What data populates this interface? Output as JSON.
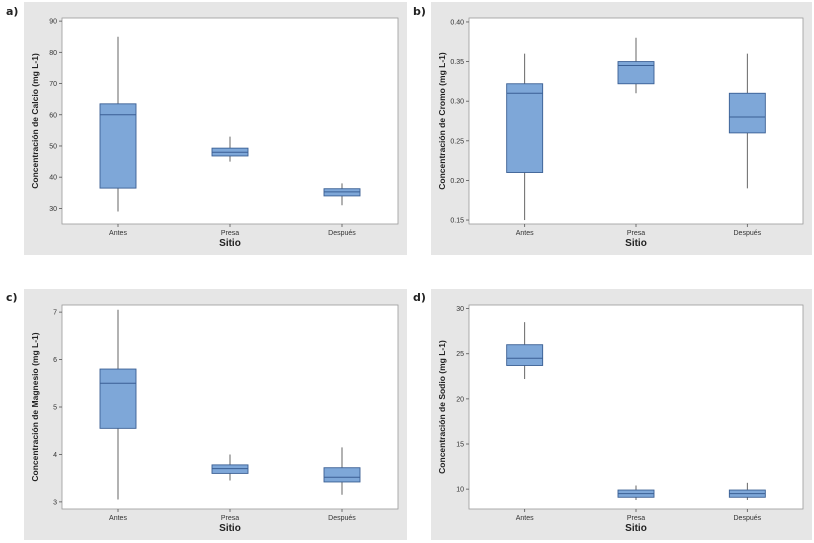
{
  "panels": [
    "a)",
    "b)",
    "c)",
    "d)"
  ],
  "chart_data": [
    {
      "type": "box",
      "title": "",
      "xlabel": "Sitio",
      "ylabel": "Concentración de Calcio (mg L-1)",
      "categories": [
        "Antes",
        "Presa",
        "Después"
      ],
      "ylim": [
        25,
        91
      ],
      "yticks": [
        30,
        40,
        50,
        60,
        70,
        80,
        90
      ],
      "boxes": [
        {
          "min": 29,
          "q1": 36.5,
          "median": 60,
          "q3": 63.5,
          "max": 85
        },
        {
          "min": 45,
          "q1": 46.8,
          "median": 48,
          "q3": 49.3,
          "max": 53
        },
        {
          "min": 31,
          "q1": 34,
          "median": 35.3,
          "q3": 36.3,
          "max": 38
        }
      ],
      "grid": false
    },
    {
      "type": "box",
      "title": "",
      "xlabel": "Sitio",
      "ylabel": "Concentración de Cromo (mg L-1)",
      "categories": [
        "Antes",
        "Presa",
        "Después"
      ],
      "ylim": [
        0.145,
        0.405
      ],
      "yticks": [
        0.15,
        0.2,
        0.25,
        0.3,
        0.35,
        0.4
      ],
      "ytick_labels": [
        "0.15",
        "0.20",
        "0.25",
        "0.30",
        "0.35",
        "0.40"
      ],
      "boxes": [
        {
          "min": 0.15,
          "q1": 0.21,
          "median": 0.31,
          "q3": 0.322,
          "max": 0.36
        },
        {
          "min": 0.31,
          "q1": 0.322,
          "median": 0.345,
          "q3": 0.35,
          "max": 0.38
        },
        {
          "min": 0.19,
          "q1": 0.26,
          "median": 0.28,
          "q3": 0.31,
          "max": 0.36
        }
      ],
      "grid": false
    },
    {
      "type": "box",
      "title": "",
      "xlabel": "Sitio",
      "ylabel": "Concentración de Magnesio (mg L-1)",
      "categories": [
        "Antes",
        "Presa",
        "Después"
      ],
      "ylim": [
        2.85,
        7.15
      ],
      "yticks": [
        3,
        4,
        5,
        6,
        7
      ],
      "boxes": [
        {
          "min": 3.05,
          "q1": 4.55,
          "median": 5.5,
          "q3": 5.8,
          "max": 7.05
        },
        {
          "min": 3.45,
          "q1": 3.6,
          "median": 3.7,
          "q3": 3.78,
          "max": 4.0
        },
        {
          "min": 3.15,
          "q1": 3.42,
          "median": 3.52,
          "q3": 3.72,
          "max": 4.15
        }
      ],
      "grid": false
    },
    {
      "type": "box",
      "title": "",
      "xlabel": "Sitio",
      "ylabel": "Concentración de Sodio (mg L-1)",
      "categories": [
        "Antes",
        "Presa",
        "Después"
      ],
      "ylim": [
        7.8,
        30.4
      ],
      "yticks": [
        10,
        15,
        20,
        25,
        30
      ],
      "boxes": [
        {
          "min": 22.2,
          "q1": 23.7,
          "median": 24.5,
          "q3": 26,
          "max": 28.5
        },
        {
          "min": 8.8,
          "q1": 9.1,
          "median": 9.5,
          "q3": 9.9,
          "max": 10.4
        },
        {
          "min": 8.8,
          "q1": 9.1,
          "median": 9.5,
          "q3": 9.9,
          "max": 10.7
        }
      ],
      "grid": false
    }
  ],
  "colors": {
    "box_fill": "#7ea7d8",
    "box_stroke": "#3a5f94",
    "whisker": "#555555",
    "panel_bg": "#e6e6e6",
    "plot_bg": "#ffffff"
  }
}
